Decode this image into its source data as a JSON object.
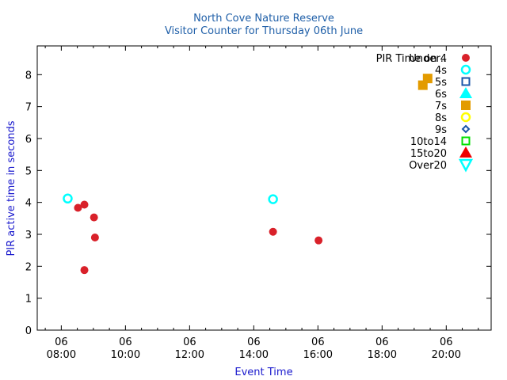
{
  "chart_data": {
    "type": "scatter",
    "title_lines": [
      "North Cove Nature Reserve",
      "Visitor Counter for Thursday 06th June"
    ],
    "xlabel": "Event Time",
    "ylabel": "PIR active time in seconds",
    "xlim": [
      7.25,
      21.4
    ],
    "ylim": [
      0,
      8.9
    ],
    "x_ticks": [
      {
        "value": 8,
        "line1": "06",
        "line2": "08:00"
      },
      {
        "value": 10,
        "line1": "06",
        "line2": "10:00"
      },
      {
        "value": 12,
        "line1": "06",
        "line2": "12:00"
      },
      {
        "value": 14,
        "line1": "06",
        "line2": "14:00"
      },
      {
        "value": 16,
        "line1": "06",
        "line2": "16:00"
      },
      {
        "value": 18,
        "line1": "06",
        "line2": "18:00"
      },
      {
        "value": 20,
        "line1": "06",
        "line2": "20:00"
      }
    ],
    "y_ticks": [
      0,
      1,
      2,
      3,
      4,
      5,
      6,
      7,
      8
    ],
    "grid": false,
    "legend_title": "PIR Time on ..",
    "legend_position": "top-right",
    "series": [
      {
        "name": "Under4",
        "marker": "filled-circle",
        "color": "#d9212a",
        "points": [
          [
            8.52,
            3.83
          ],
          [
            8.72,
            3.93
          ],
          [
            8.72,
            1.88
          ],
          [
            9.02,
            3.53
          ],
          [
            9.05,
            2.9
          ],
          [
            14.6,
            3.08
          ],
          [
            16.02,
            2.81
          ]
        ]
      },
      {
        "name": "4s",
        "marker": "open-circle",
        "color": "#00ffff",
        "points": [
          [
            8.2,
            4.12
          ],
          [
            14.6,
            4.1
          ]
        ]
      },
      {
        "name": "5s",
        "marker": "open-square",
        "color": "#1a56a8",
        "points": []
      },
      {
        "name": "6s",
        "marker": "filled-triangle-up",
        "color": "#00ffff",
        "points": []
      },
      {
        "name": "7s",
        "marker": "filled-square",
        "color": "#e39b00",
        "points": [
          [
            19.27,
            7.67
          ],
          [
            19.42,
            7.88
          ]
        ]
      },
      {
        "name": "8s",
        "marker": "open-circle",
        "color": "#ffff00",
        "points": []
      },
      {
        "name": "9s",
        "marker": "open-diamond",
        "color": "#1a56a8",
        "points": []
      },
      {
        "name": "10to14",
        "marker": "open-square",
        "color": "#00e000",
        "points": []
      },
      {
        "name": "15to20",
        "marker": "filled-triangle-up",
        "color": "#ee0000",
        "points": []
      },
      {
        "name": "Over20",
        "marker": "open-triangle-down",
        "color": "#00ffff",
        "points": []
      }
    ]
  }
}
